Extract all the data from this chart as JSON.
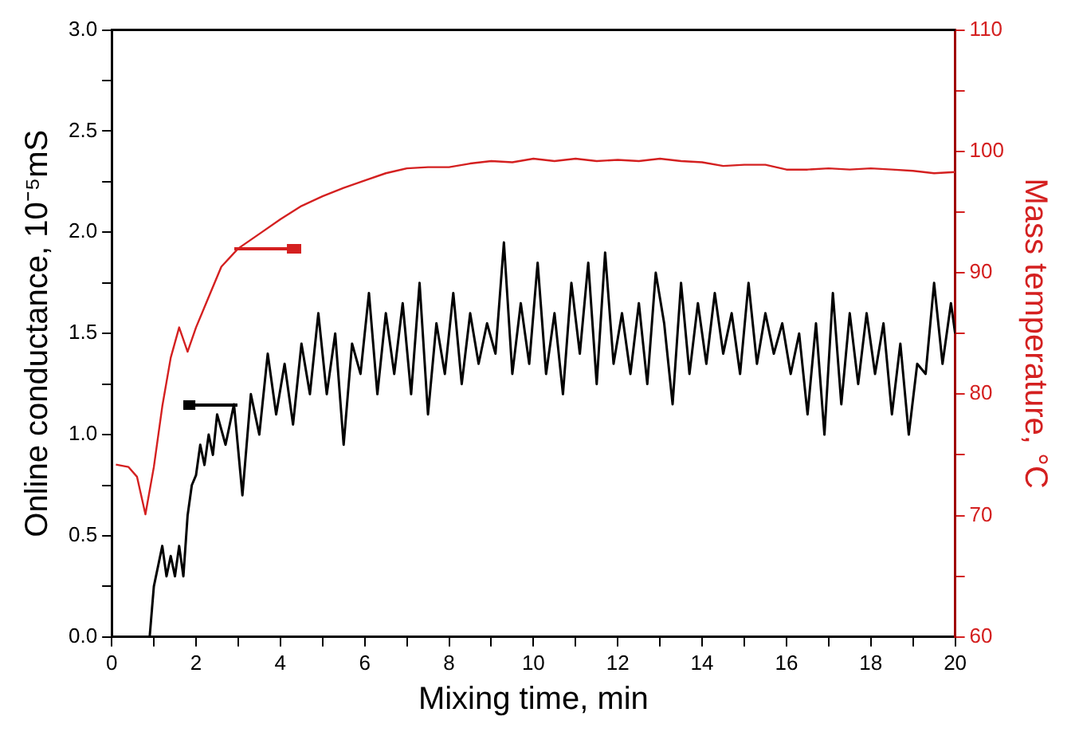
{
  "chart_data": {
    "type": "line",
    "xlabel": "Mixing time, min",
    "ylabel": "Online conductance, 10⁻⁵mS",
    "y2label": "Mass temperature, °C",
    "xlim": [
      0,
      20
    ],
    "xticks": [
      0,
      {
        "value": 1,
        "label": null
      },
      2,
      {
        "value": 3,
        "label": null
      },
      4,
      {
        "value": 5,
        "label": null
      },
      6,
      {
        "value": 7,
        "label": null
      },
      8,
      {
        "value": 9,
        "label": null
      },
      10,
      {
        "value": 11,
        "label": null
      },
      12,
      {
        "value": 13,
        "label": null
      },
      14,
      {
        "value": 15,
        "label": null
      },
      16,
      {
        "value": 17,
        "label": null
      },
      18,
      {
        "value": 19,
        "label": null
      },
      20
    ],
    "ylim": [
      0,
      3
    ],
    "yticks": [
      {
        "value": 0,
        "label": "0.0"
      },
      {
        "value": 0.25,
        "label": null
      },
      {
        "value": 0.5,
        "label": "0.5"
      },
      {
        "value": 0.75,
        "label": null
      },
      {
        "value": 1,
        "label": "1.0"
      },
      {
        "value": 1.25,
        "label": null
      },
      {
        "value": 1.5,
        "label": "1.5"
      },
      {
        "value": 1.75,
        "label": null
      },
      {
        "value": 2,
        "label": "2.0"
      },
      {
        "value": 2.25,
        "label": null
      },
      {
        "value": 2.5,
        "label": "2.5"
      },
      {
        "value": 2.75,
        "label": null
      },
      {
        "value": 3,
        "label": "3.0"
      }
    ],
    "y2lim": [
      60,
      110
    ],
    "y2ticks": [
      60,
      {
        "value": 65,
        "label": null
      },
      70,
      {
        "value": 75,
        "label": null
      },
      80,
      {
        "value": 85,
        "label": null
      },
      90,
      {
        "value": 95,
        "label": null
      },
      100,
      {
        "value": 105,
        "label": null
      },
      110
    ],
    "grid": false,
    "legend": false,
    "marker": "none",
    "line_style": "solid",
    "series": [
      {
        "color": "#000000",
        "x": [
          0.9,
          1.0,
          1.1,
          1.2,
          1.3,
          1.4,
          1.5,
          1.6,
          1.7,
          1.8,
          1.9,
          2.0,
          2.1,
          2.2,
          2.3,
          2.4,
          2.5,
          2.7,
          2.9,
          3.1,
          3.3,
          3.5,
          3.7,
          3.9,
          4.1,
          4.3,
          4.5,
          4.7,
          4.9,
          5.1,
          5.3,
          5.5,
          5.7,
          5.9,
          6.1,
          6.3,
          6.5,
          6.7,
          6.9,
          7.1,
          7.3,
          7.5,
          7.7,
          7.9,
          8.1,
          8.3,
          8.5,
          8.7,
          8.9,
          9.1,
          9.3,
          9.5,
          9.7,
          9.9,
          10.1,
          10.3,
          10.5,
          10.7,
          10.9,
          11.1,
          11.3,
          11.5,
          11.7,
          11.9,
          12.1,
          12.3,
          12.5,
          12.7,
          12.9,
          13.1,
          13.3,
          13.5,
          13.7,
          13.9,
          14.1,
          14.3,
          14.5,
          14.7,
          14.9,
          15.1,
          15.3,
          15.5,
          15.7,
          15.9,
          16.1,
          16.3,
          16.5,
          16.7,
          16.9,
          17.1,
          17.3,
          17.5,
          17.7,
          17.9,
          18.1,
          18.3,
          18.5,
          18.7,
          18.9,
          19.1,
          19.3,
          19.5,
          19.7,
          19.9,
          20.0
        ],
        "values": [
          0,
          0.25,
          0.35,
          0.45,
          0.3,
          0.4,
          0.3,
          0.45,
          0.3,
          0.6,
          0.75,
          0.8,
          0.95,
          0.85,
          1.0,
          0.9,
          1.1,
          0.95,
          1.15,
          0.7,
          1.2,
          1.0,
          1.4,
          1.1,
          1.35,
          1.05,
          1.45,
          1.2,
          1.6,
          1.2,
          1.5,
          0.95,
          1.45,
          1.3,
          1.7,
          1.2,
          1.6,
          1.3,
          1.65,
          1.2,
          1.75,
          1.1,
          1.55,
          1.3,
          1.7,
          1.25,
          1.6,
          1.35,
          1.55,
          1.4,
          1.95,
          1.3,
          1.65,
          1.35,
          1.85,
          1.3,
          1.6,
          1.2,
          1.75,
          1.4,
          1.85,
          1.25,
          1.9,
          1.35,
          1.6,
          1.3,
          1.65,
          1.25,
          1.8,
          1.55,
          1.15,
          1.75,
          1.3,
          1.65,
          1.35,
          1.7,
          1.4,
          1.6,
          1.3,
          1.75,
          1.35,
          1.6,
          1.4,
          1.55,
          1.3,
          1.5,
          1.1,
          1.55,
          1.0,
          1.7,
          1.15,
          1.6,
          1.25,
          1.6,
          1.3,
          1.55,
          1.1,
          1.45,
          1.0,
          1.35,
          1.3,
          1.75,
          1.35,
          1.65,
          1.5
        ]
      },
      {
        "color": "#d42020",
        "axis": "y2",
        "x": [
          0.1,
          0.4,
          0.6,
          0.8,
          1.0,
          1.2,
          1.4,
          1.6,
          1.8,
          2.0,
          2.3,
          2.6,
          3.0,
          3.5,
          4.0,
          4.5,
          5.0,
          5.5,
          6.0,
          6.5,
          7.0,
          7.5,
          8.0,
          8.5,
          9.0,
          9.5,
          10.0,
          10.5,
          11.0,
          11.5,
          12.0,
          12.5,
          13.0,
          13.5,
          14.0,
          14.5,
          15.0,
          15.5,
          16.0,
          16.5,
          17.0,
          17.5,
          18.0,
          18.5,
          19.0,
          19.5,
          20.0
        ],
        "values": [
          74.2,
          74,
          73.2,
          70.1,
          74,
          79,
          83,
          85.5,
          83.5,
          85.5,
          88,
          90.5,
          92,
          93.2,
          94.4,
          95.5,
          96.3,
          97,
          97.6,
          98.2,
          98.6,
          98.7,
          98.7,
          99,
          99.2,
          99.1,
          99.4,
          99.2,
          99.4,
          99.2,
          99.3,
          99.2,
          99.4,
          99.2,
          99.1,
          98.8,
          98.9,
          98.9,
          98.5,
          98.5,
          98.6,
          98.5,
          98.6,
          98.5,
          98.4,
          98.2,
          98.3
        ]
      }
    ]
  }
}
